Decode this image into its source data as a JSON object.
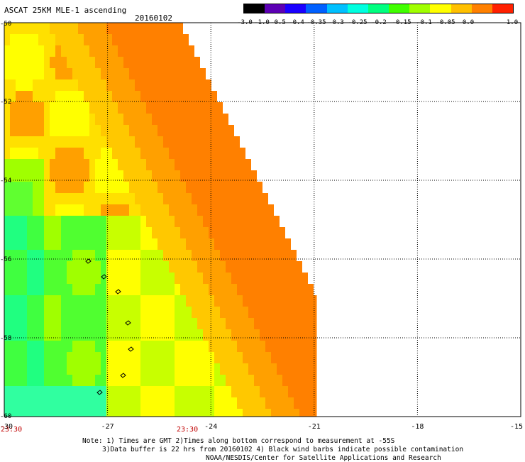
{
  "header": {
    "title": "ASCAT 25KM MLE-1 ascending",
    "date": "20160102"
  },
  "colorbar": {
    "labels": [
      "-3.0",
      "-1.0",
      "-0.5",
      "-0.4",
      "-0.35",
      "-0.3",
      "-0.25",
      "-0.2",
      "-0.15",
      "-0.1",
      "-0.05",
      "0.0",
      "1.0"
    ],
    "colors": [
      "#000000",
      "#5c00b4",
      "#1a00ff",
      "#0060ff",
      "#00c0ff",
      "#00ffe0",
      "#00ff80",
      "#40ff00",
      "#a0ff00",
      "#ffff00",
      "#ffc000",
      "#ff8000",
      "#ff2000"
    ]
  },
  "map": {
    "x_ticks": [
      "-30",
      "-27",
      "-24",
      "-21",
      "-18",
      "-15"
    ],
    "y_ticks": [
      "-50",
      "-52",
      "-54",
      "-56",
      "-58",
      "-60"
    ],
    "time_labels": [
      "23:30",
      "23:30"
    ]
  },
  "notes": {
    "line1": "Note: 1) Times are GMT 2)Times along bottom correspond to measurement at -55S",
    "line2": "3)Data buffer is 22 hrs from 20160102 4) Black wind barbs indicate possible contamination",
    "line3": "NOAA/NESDIS/Center for Satellite Applications and Research"
  }
}
